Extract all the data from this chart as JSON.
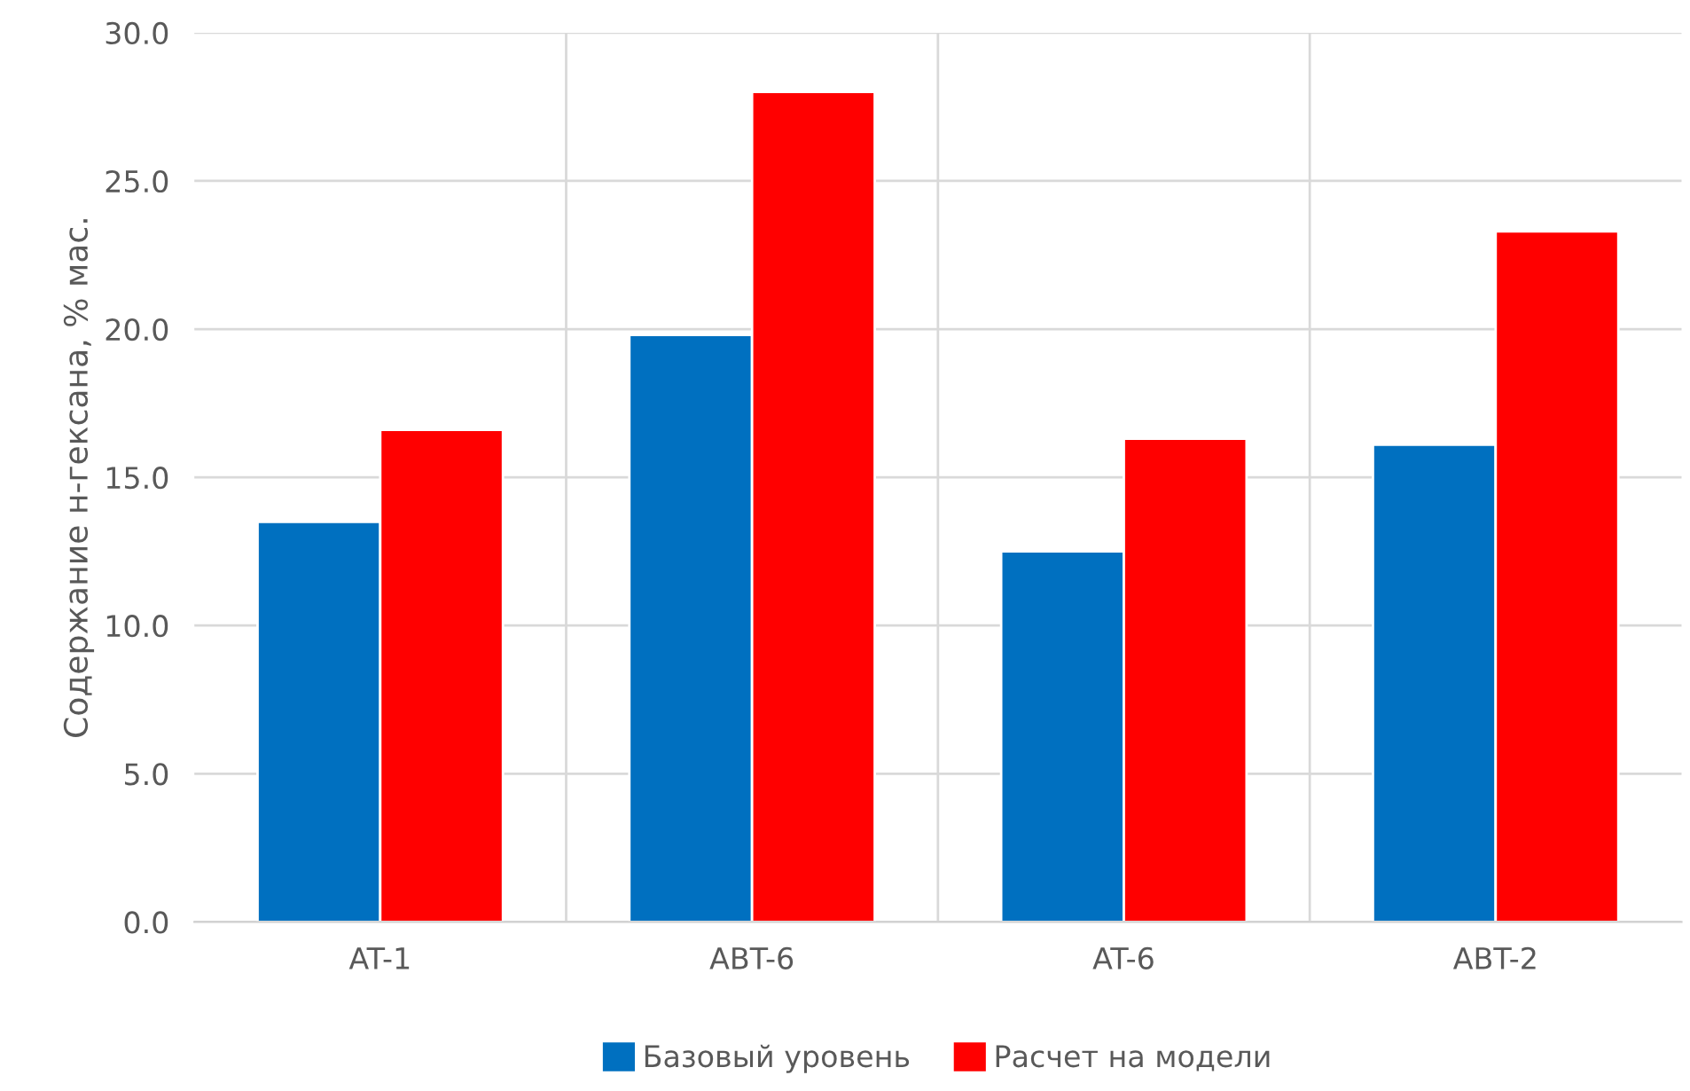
{
  "chart_data": {
    "type": "bar",
    "ylabel": "Содержание н-гексана, % мас.",
    "categories": [
      "AT-1",
      "ABT-6",
      "AT-6",
      "ABT-2"
    ],
    "series": [
      {
        "name": "Базовый уровень",
        "color": "#0070c0",
        "values": [
          13.5,
          19.8,
          12.5,
          16.1
        ]
      },
      {
        "name": "Расчет на модели",
        "color": "#ff0000",
        "values": [
          16.6,
          28.0,
          16.3,
          23.3
        ]
      }
    ],
    "ylim": [
      0,
      30
    ],
    "yticks": [
      {
        "value": 0,
        "label": "0.0"
      },
      {
        "value": 5,
        "label": "5.0"
      },
      {
        "value": 10,
        "label": "10.0"
      },
      {
        "value": 15,
        "label": "15.0"
      },
      {
        "value": 20,
        "label": "20.0"
      },
      {
        "value": 25,
        "label": "25.0"
      },
      {
        "value": 30,
        "label": "30.0"
      }
    ],
    "grid": true,
    "legend": "bottom"
  }
}
